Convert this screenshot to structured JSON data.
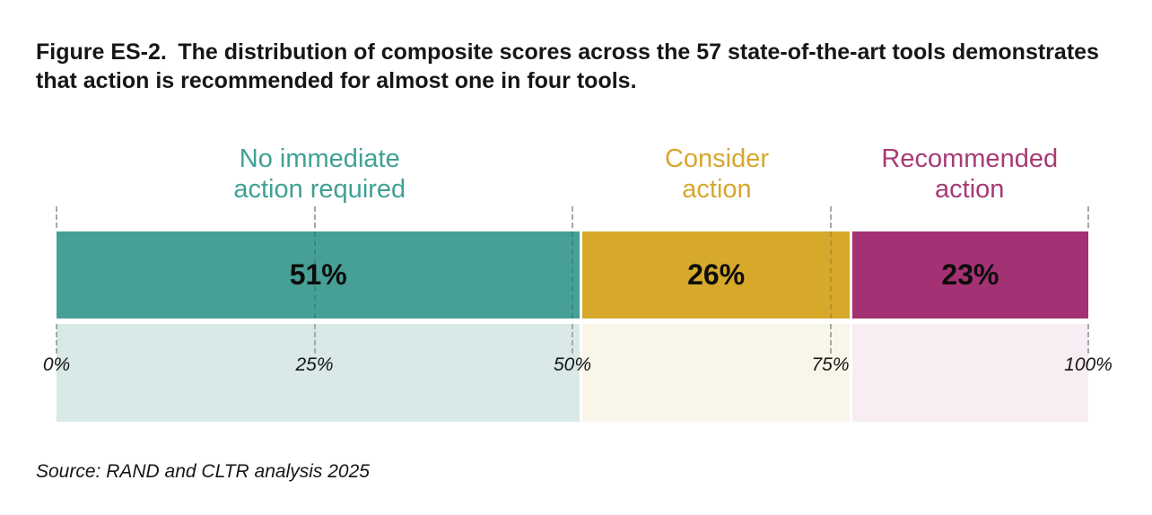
{
  "figure": {
    "title": "Figure ES-2. The distribution of composite scores across the 57 state-of-the-art tools demonstrates that action is recommended for almost one in four tools.",
    "source": "Source: RAND and CLTR analysis 2025"
  },
  "chart_data": {
    "type": "bar",
    "subtype": "horizontal-stacked-single-bar",
    "title": "Distribution of composite scores across the 57 state-of-the-art tools",
    "categories": [
      "No immediate action required",
      "Consider action",
      "Recommended action"
    ],
    "values": [
      51,
      26,
      23
    ],
    "unit": "%",
    "total_items": 57,
    "segments": [
      {
        "label": "No immediate\naction required",
        "value": 51,
        "value_label": "51%",
        "color": "#46a095",
        "band_color": "#d8e9e7",
        "text_color": "#3fa195",
        "center": 25.5
      },
      {
        "label": "Consider\naction",
        "value": 26,
        "value_label": "26%",
        "color": "#d7a92b",
        "band_color": "#f8f6e8",
        "text_color": "#d7a62e",
        "center": 64
      },
      {
        "label": "Recommended\naction",
        "value": 23,
        "value_label": "23%",
        "color": "#a43173",
        "band_color": "#f9edf4",
        "text_color": "#a63a76",
        "center": 88.5
      }
    ],
    "x_axis": {
      "range": [
        0,
        100
      ],
      "ticks": [
        "0%",
        "25%",
        "50%",
        "75%",
        "100%"
      ],
      "tick_positions": [
        0,
        25,
        50,
        75,
        100
      ],
      "gridline_style": "dashed",
      "gridline_color": "#a8a8a8"
    },
    "legend_position": "above-segments",
    "value_label_color": "#0d0d0d"
  }
}
